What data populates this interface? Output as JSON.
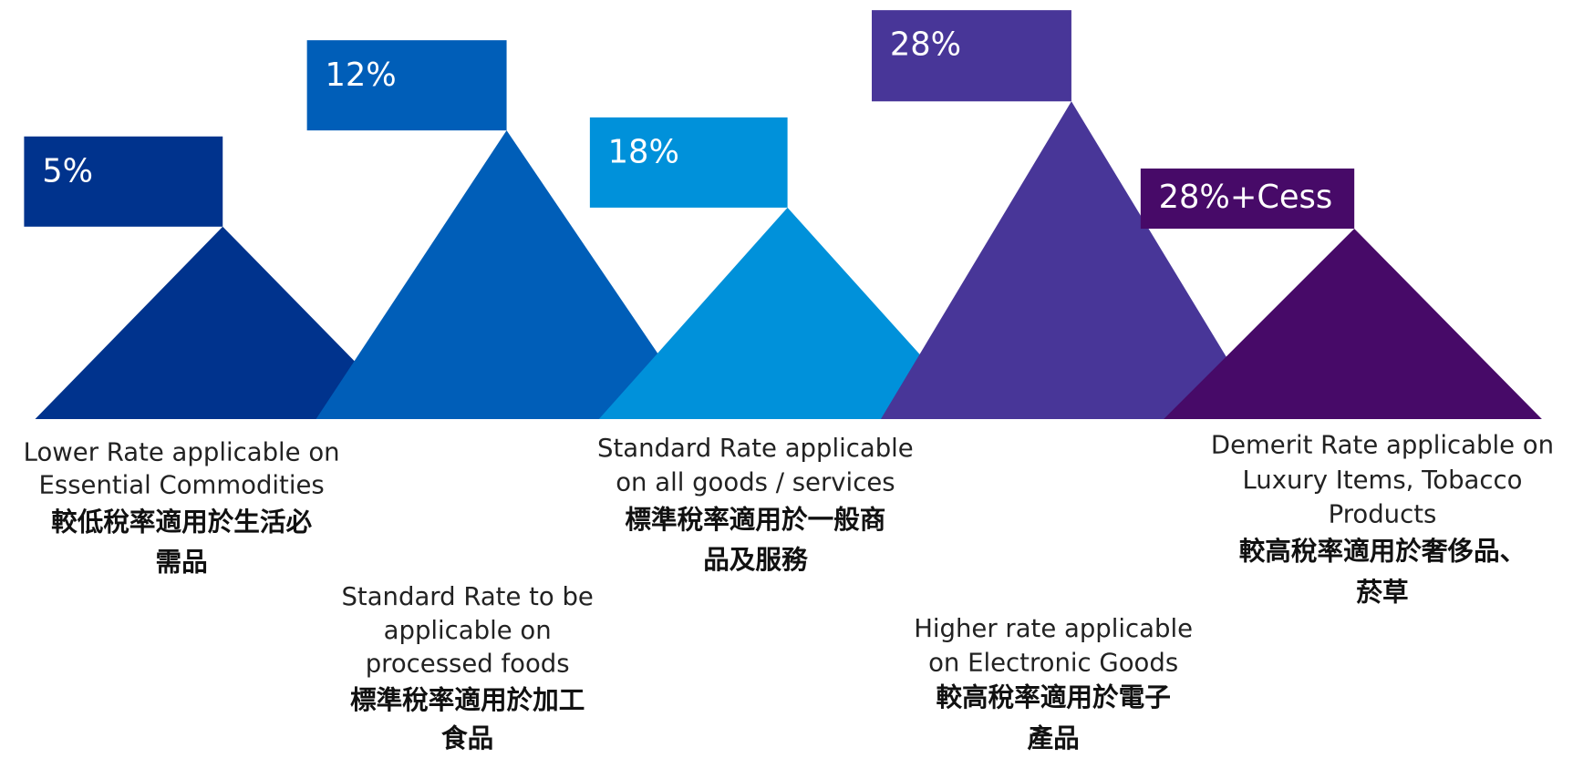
{
  "items": [
    {
      "rate": "5%",
      "english": [
        "Lower Rate applicable on",
        "Essential Commodities"
      ],
      "chinese": [
        "較低稅率適用於生活必",
        "需品"
      ]
    },
    {
      "rate": "12%",
      "english": [
        "Standard Rate to be",
        "applicable on",
        "processed foods"
      ],
      "chinese": [
        "標準稅率適用於加工",
        "食品"
      ]
    },
    {
      "rate": "18%",
      "english": [
        "Standard Rate applicable",
        "on all goods / services"
      ],
      "chinese": [
        "標準稅率適用於一般商",
        "品及服務"
      ]
    },
    {
      "rate": "28%",
      "english": [
        "Higher rate applicable",
        "on Electronic Goods"
      ],
      "chinese": [
        "較高稅率適用於電子",
        "產品"
      ]
    },
    {
      "rate": "28%+Cess",
      "english": [
        "Demerit Rate applicable on",
        "Luxury Items, Tobacco",
        "Products"
      ],
      "chinese": [
        "較高稅率適用於奢侈品、",
        "菸草"
      ]
    }
  ]
}
